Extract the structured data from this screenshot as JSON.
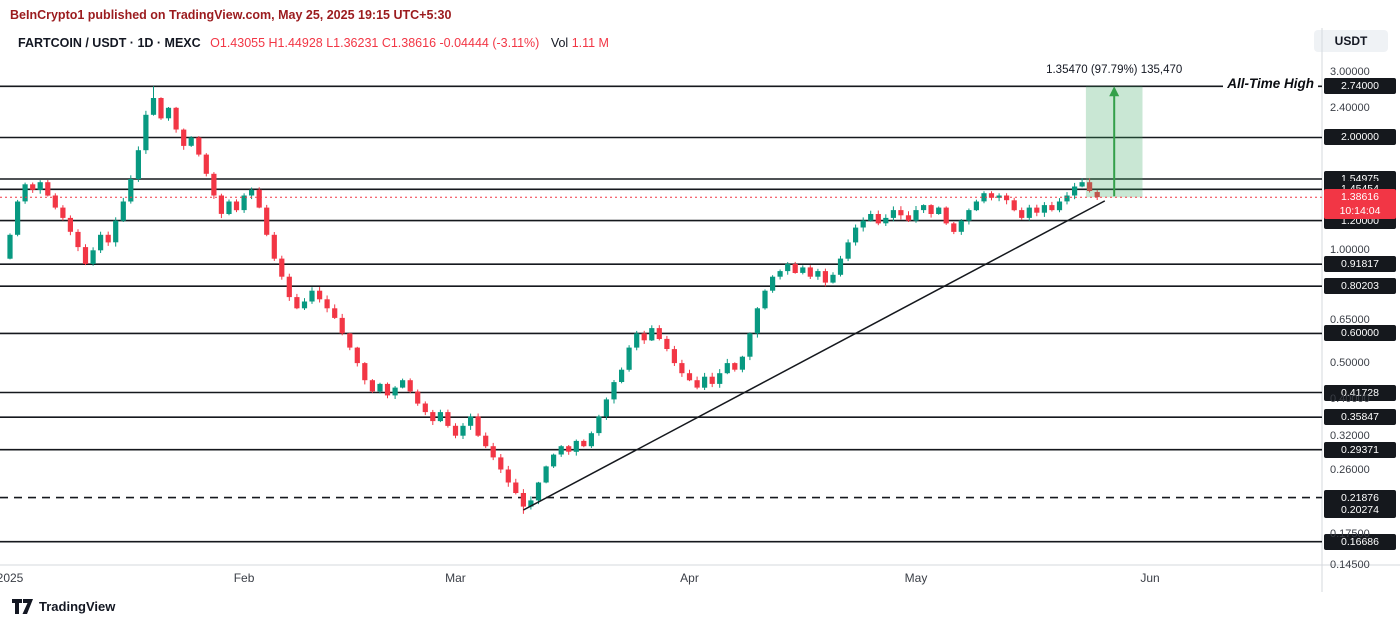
{
  "header": {
    "attribution": "BeInCrypto1 published on TradingView.com, May 25, 2025 19:15 UTC+5:30",
    "currency_button": "USDT"
  },
  "legend": {
    "symbol": "FARTCOIN / USDT · 1D · MEXC",
    "ohlc": "O1.43055 H1.44928 L1.36231 C1.38616 -0.04444 (-3.11%)",
    "vol_label": "Vol",
    "vol_value": "1.11 M"
  },
  "footer": {
    "brand": "TradingView"
  },
  "chart_data": {
    "type": "candlestick",
    "title": "FARTCOIN / USDT · 1D · MEXC",
    "interval": "1D",
    "exchange": "MEXC",
    "scale": "log",
    "start_date": "2025-01-01",
    "last_candle": {
      "open": 1.43055,
      "high": 1.44928,
      "low": 1.36231,
      "close": 1.38616,
      "change": "-0.04444",
      "change_pct": "-3.11%",
      "volume": "1.11 M"
    },
    "first_open": 0.95,
    "closes": [
      1.1,
      1.35,
      1.5,
      1.45,
      1.52,
      1.4,
      1.3,
      1.22,
      1.12,
      1.02,
      0.92,
      1.0,
      1.1,
      1.05,
      1.2,
      1.35,
      1.55,
      1.85,
      2.3,
      2.55,
      2.25,
      2.4,
      2.1,
      1.9,
      2.0,
      1.8,
      1.6,
      1.4,
      1.25,
      1.35,
      1.28,
      1.4,
      1.45,
      1.3,
      1.1,
      0.95,
      0.85,
      0.75,
      0.7,
      0.73,
      0.78,
      0.74,
      0.7,
      0.66,
      0.6,
      0.55,
      0.5,
      0.45,
      0.42,
      0.44,
      0.41,
      0.43,
      0.45,
      0.42,
      0.39,
      0.37,
      0.35,
      0.37,
      0.34,
      0.32,
      0.34,
      0.36,
      0.32,
      0.3,
      0.28,
      0.26,
      0.24,
      0.225,
      0.207,
      0.215,
      0.24,
      0.265,
      0.285,
      0.3,
      0.29,
      0.31,
      0.3,
      0.325,
      0.36,
      0.4,
      0.445,
      0.48,
      0.55,
      0.6,
      0.575,
      0.62,
      0.58,
      0.545,
      0.5,
      0.47,
      0.45,
      0.43,
      0.46,
      0.44,
      0.47,
      0.5,
      0.48,
      0.52,
      0.6,
      0.7,
      0.78,
      0.85,
      0.88,
      0.92,
      0.87,
      0.9,
      0.85,
      0.88,
      0.82,
      0.86,
      0.95,
      1.05,
      1.15,
      1.2,
      1.25,
      1.18,
      1.22,
      1.28,
      1.24,
      1.2,
      1.28,
      1.32,
      1.25,
      1.3,
      1.18,
      1.12,
      1.2,
      1.28,
      1.35,
      1.42,
      1.38,
      1.4,
      1.36,
      1.28,
      1.22,
      1.3,
      1.26,
      1.32,
      1.28,
      1.35,
      1.4,
      1.48,
      1.52,
      1.44,
      1.38616
    ],
    "high_override": {
      "index": 19,
      "high": 2.74
    },
    "low_override": {
      "index": 68,
      "low": 0.198
    },
    "levels_solid": [
      2.74,
      2.0,
      1.54975,
      1.45454,
      1.2,
      0.91817,
      0.80203,
      0.6,
      0.41728,
      0.35847,
      0.29371,
      0.16686
    ],
    "levels_dashed": [
      0.21876
    ],
    "axis_plain_ticks": [
      3.0,
      2.4,
      1.0,
      0.65,
      0.5,
      0.4,
      0.32,
      0.26,
      0.175,
      0.145
    ],
    "axis_extra_badges": [
      0.20274
    ],
    "current_price": 1.38616,
    "countdown": "10:14:04",
    "trendline": {
      "from_index": 68,
      "from_price": 0.2027,
      "to_index": 145,
      "to_price": 1.3547
    },
    "projection_box": {
      "from_index": 142.5,
      "to_index": 150,
      "bottom_price": 1.3853,
      "top_price": 2.74,
      "label": "1.35470 (97.79%) 135,470"
    },
    "ath_label": "All-Time High",
    "x_axis": {
      "labels": [
        "2025",
        "Feb",
        "Mar",
        "Apr",
        "May",
        "Jun"
      ],
      "day_indices": [
        0,
        31,
        59,
        90,
        120,
        151
      ]
    },
    "ylim": [
      0.145,
      3.22
    ],
    "colors": {
      "up": "#089981",
      "down": "#f23645",
      "level_line": "#15181d",
      "current_line": "#f23645",
      "projection_fill": "rgba(60,170,100,0.28)",
      "projection_arrow": "#34a04a"
    }
  }
}
